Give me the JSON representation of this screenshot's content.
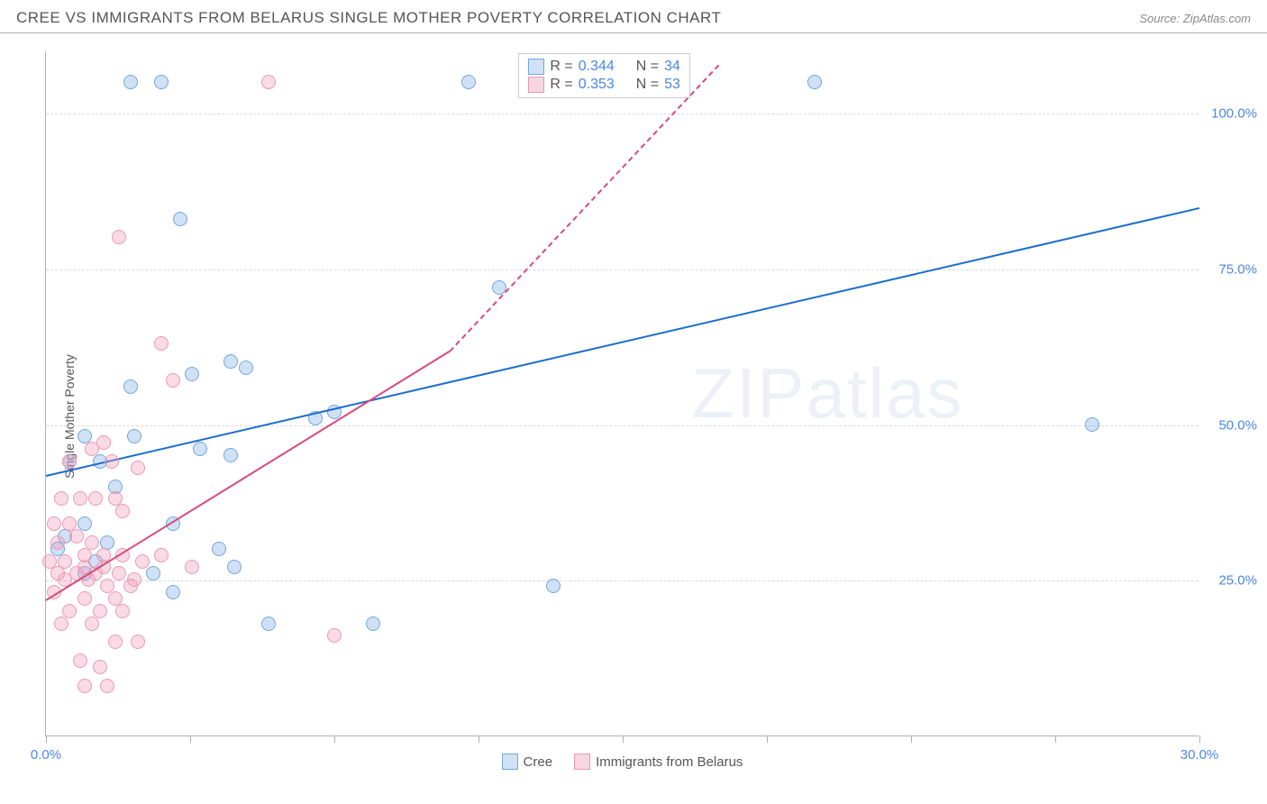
{
  "title": "CREE VS IMMIGRANTS FROM BELARUS SINGLE MOTHER POVERTY CORRELATION CHART",
  "source": "Source: ZipAtlas.com",
  "watermark_a": "ZIP",
  "watermark_b": "atlas",
  "chart": {
    "type": "scatter",
    "ylabel": "Single Mother Poverty",
    "xlim": [
      0,
      30
    ],
    "ylim": [
      0,
      110
    ],
    "yticks": [
      {
        "v": 25,
        "label": "25.0%"
      },
      {
        "v": 50,
        "label": "50.0%"
      },
      {
        "v": 75,
        "label": "75.0%"
      },
      {
        "v": 100,
        "label": "100.0%"
      }
    ],
    "xticks": [
      {
        "v": 0,
        "label": "0.0%"
      },
      {
        "v": 3.75,
        "label": ""
      },
      {
        "v": 7.5,
        "label": ""
      },
      {
        "v": 11.25,
        "label": ""
      },
      {
        "v": 15,
        "label": ""
      },
      {
        "v": 18.75,
        "label": ""
      },
      {
        "v": 22.5,
        "label": ""
      },
      {
        "v": 26.25,
        "label": ""
      },
      {
        "v": 30,
        "label": "30.0%"
      }
    ],
    "background_color": "#ffffff",
    "grid_color": "#d8d8d8",
    "marker_radius": 8,
    "series": [
      {
        "name": "Cree",
        "point_fill": "rgba(120,170,230,0.35)",
        "point_stroke": "#6fa8dc",
        "swatch_fill": "#d0e2f5",
        "swatch_stroke": "#6fa8dc",
        "trend_color": "#1c6dd0",
        "trend": {
          "x1": 0,
          "y1": 42,
          "x2": 30,
          "y2": 85
        },
        "R": "0.344",
        "N": "34",
        "points": [
          [
            2.2,
            105
          ],
          [
            3.0,
            105
          ],
          [
            11.0,
            105
          ],
          [
            20.0,
            105
          ],
          [
            3.5,
            83
          ],
          [
            11.8,
            72
          ],
          [
            2.2,
            56
          ],
          [
            3.8,
            58
          ],
          [
            5.2,
            59
          ],
          [
            4.8,
            60
          ],
          [
            7.5,
            52
          ],
          [
            7.0,
            51
          ],
          [
            27.2,
            50
          ],
          [
            1.0,
            48
          ],
          [
            2.3,
            48
          ],
          [
            4.0,
            46
          ],
          [
            4.8,
            45
          ],
          [
            0.6,
            44
          ],
          [
            1.4,
            44
          ],
          [
            1.8,
            40
          ],
          [
            1.0,
            34
          ],
          [
            2.8,
            26
          ],
          [
            3.3,
            34
          ],
          [
            4.5,
            30
          ],
          [
            4.9,
            27
          ],
          [
            3.3,
            23
          ],
          [
            13.2,
            24
          ],
          [
            5.8,
            18
          ],
          [
            8.5,
            18
          ],
          [
            1.0,
            26
          ],
          [
            1.3,
            28
          ],
          [
            0.5,
            32
          ],
          [
            0.3,
            30
          ],
          [
            1.6,
            31
          ]
        ]
      },
      {
        "name": "Immigrants from Belarus",
        "point_fill": "rgba(240,150,180,0.35)",
        "point_stroke": "#e89ab5",
        "swatch_fill": "#f7d6e1",
        "swatch_stroke": "#e89ab5",
        "trend_color": "#d94a78",
        "trend": {
          "x1": 0,
          "y1": 22,
          "x2": 10.5,
          "y2": 62
        },
        "trend_ext": {
          "x1": 10.5,
          "y1": 62,
          "x2": 17.5,
          "y2": 108
        },
        "R": "0.353",
        "N": "53",
        "points": [
          [
            5.8,
            105
          ],
          [
            1.9,
            80
          ],
          [
            3.0,
            63
          ],
          [
            3.3,
            57
          ],
          [
            1.2,
            46
          ],
          [
            1.5,
            47
          ],
          [
            0.6,
            44
          ],
          [
            1.7,
            44
          ],
          [
            2.4,
            43
          ],
          [
            0.4,
            38
          ],
          [
            0.9,
            38
          ],
          [
            1.3,
            38
          ],
          [
            1.8,
            38
          ],
          [
            2.0,
            36
          ],
          [
            0.2,
            34
          ],
          [
            0.6,
            34
          ],
          [
            0.3,
            31
          ],
          [
            0.8,
            32
          ],
          [
            1.2,
            31
          ],
          [
            0.1,
            28
          ],
          [
            0.5,
            28
          ],
          [
            1.0,
            29
          ],
          [
            1.5,
            29
          ],
          [
            2.0,
            29
          ],
          [
            2.5,
            28
          ],
          [
            3.0,
            29
          ],
          [
            3.8,
            27
          ],
          [
            0.3,
            26
          ],
          [
            0.8,
            26
          ],
          [
            1.3,
            26
          ],
          [
            1.9,
            26
          ],
          [
            2.3,
            25
          ],
          [
            0.2,
            23
          ],
          [
            1.0,
            22
          ],
          [
            1.8,
            22
          ],
          [
            0.6,
            20
          ],
          [
            1.4,
            20
          ],
          [
            2.0,
            20
          ],
          [
            0.4,
            18
          ],
          [
            1.2,
            18
          ],
          [
            1.8,
            15
          ],
          [
            2.4,
            15
          ],
          [
            7.5,
            16
          ],
          [
            0.9,
            12
          ],
          [
            1.4,
            11
          ],
          [
            1.6,
            8
          ],
          [
            1.0,
            8
          ],
          [
            1.1,
            25
          ],
          [
            1.6,
            24
          ],
          [
            2.2,
            24
          ],
          [
            0.5,
            25
          ],
          [
            1.0,
            27
          ],
          [
            1.5,
            27
          ]
        ]
      }
    ],
    "stats_labels": {
      "R": "R =",
      "N": "N ="
    }
  }
}
